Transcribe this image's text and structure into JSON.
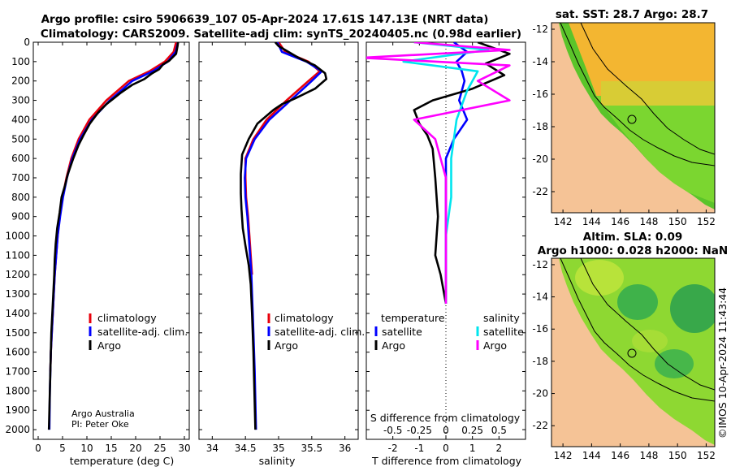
{
  "titles": {
    "line1": "Argo profile: csiro 5906639_107 05-Apr-2024 17.61S 147.13E (NRT data)",
    "line2": "Climatology: CARS2009. Satellite-adj clim: synTS_20240405.nc (0.98d earlier)"
  },
  "credit": {
    "line1": "Argo Australia",
    "line2": "PI: Peter Oke"
  },
  "colors": {
    "argo": "#000000",
    "clim": "#e8000b",
    "sat": "#0000ff",
    "sat_s": "#00e5ee",
    "argo_s": "#ff00ff"
  },
  "chart_data": [
    {
      "type": "line",
      "title": "",
      "xlabel": "temperature (deg C)",
      "ylabel": "",
      "xlim": [
        -1,
        31
      ],
      "ylim": [
        2050,
        0
      ],
      "xticks": [
        "0",
        "5",
        "10",
        "15",
        "20",
        "25",
        "30"
      ],
      "xtick_values": [
        0,
        5,
        10,
        15,
        20,
        25,
        30
      ],
      "yticks": [
        "0",
        "100",
        "200",
        "300",
        "400",
        "500",
        "600",
        "700",
        "800",
        "900",
        "1000",
        "1100",
        "1200",
        "1300",
        "1400",
        "1500",
        "1600",
        "1700",
        "1800",
        "1900",
        "2000"
      ],
      "ytick_values": [
        0,
        100,
        200,
        300,
        400,
        500,
        600,
        700,
        800,
        900,
        1000,
        1100,
        1200,
        1300,
        1400,
        1500,
        1600,
        1700,
        1800,
        1900,
        2000
      ],
      "legend": [
        "climatology",
        "satellite-adj. clim.",
        "Argo"
      ],
      "series": [
        {
          "name": "climatology",
          "color_key": "clim",
          "x": [
            28.3,
            27.8,
            26.0,
            22.8,
            18.6,
            14.0,
            10.5,
            8.3,
            6.8,
            5.8,
            5.0,
            4.4,
            4.0,
            3.7,
            3.4,
            3.2,
            3.0,
            2.8,
            2.6,
            2.5
          ],
          "y": [
            0,
            50,
            100,
            150,
            200,
            300,
            400,
            500,
            600,
            700,
            800,
            900,
            1000,
            1100,
            1200,
            1300,
            1400,
            1500,
            1600,
            1700
          ]
        },
        {
          "name": "satellite-adj. clim.",
          "color_key": "sat",
          "x": [
            28.7,
            28.2,
            26.6,
            23.5,
            19.3,
            14.7,
            11.0,
            8.6,
            7.0,
            5.9,
            5.1,
            4.5,
            4.0,
            3.7,
            3.4,
            3.2,
            3.0,
            2.8,
            2.6,
            2.5,
            2.4,
            2.3
          ],
          "y": [
            0,
            50,
            100,
            150,
            200,
            300,
            400,
            500,
            600,
            700,
            800,
            900,
            1000,
            1100,
            1200,
            1300,
            1400,
            1500,
            1600,
            1700,
            1800,
            2000
          ]
        },
        {
          "name": "Argo",
          "color_key": "argo",
          "x": [
            28.7,
            28.6,
            28.3,
            26.9,
            25.6,
            24.8,
            23.4,
            21.8,
            19.3,
            17.0,
            15.5,
            14.0,
            12.4,
            10.6,
            9.3,
            8.3,
            7.2,
            6.1,
            5.5,
            4.8,
            4.4,
            3.9,
            3.6,
            3.4,
            3.3,
            3.1,
            2.9,
            2.7,
            2.6,
            2.5,
            2.4,
            2.3,
            2.2
          ],
          "y": [
            0,
            20,
            60,
            95,
            115,
            140,
            160,
            190,
            220,
            260,
            290,
            320,
            360,
            420,
            480,
            530,
            600,
            680,
            740,
            800,
            880,
            960,
            1040,
            1120,
            1200,
            1300,
            1400,
            1500,
            1600,
            1700,
            1800,
            1900,
            2000
          ]
        }
      ]
    },
    {
      "type": "line",
      "title": "",
      "xlabel": "salinity",
      "ylabel": "",
      "xlim": [
        33.8,
        36.2
      ],
      "ylim": [
        2050,
        0
      ],
      "xticks": [
        "34",
        "34.5",
        "35",
        "35.5",
        "36"
      ],
      "xtick_values": [
        34,
        34.5,
        35,
        35.5,
        36
      ],
      "legend": [
        "climatology",
        "satellite-adj. clim.",
        "Argo"
      ],
      "series": [
        {
          "name": "climatology",
          "color_key": "clim",
          "x": [
            35.0,
            35.1,
            35.45,
            35.62,
            35.45,
            35.12,
            34.82,
            34.62,
            34.5,
            34.5,
            34.51,
            34.54,
            34.56,
            34.58,
            34.6
          ],
          "y": [
            0,
            50,
            100,
            150,
            200,
            300,
            400,
            500,
            600,
            700,
            800,
            900,
            1000,
            1100,
            1200
          ]
        },
        {
          "name": "satellite-adj. clim.",
          "color_key": "sat",
          "x": [
            34.98,
            35.05,
            35.42,
            35.65,
            35.5,
            35.18,
            34.86,
            34.64,
            34.51,
            34.49,
            34.5,
            34.53,
            34.55,
            34.57,
            34.59,
            34.6,
            34.61,
            34.62,
            34.63,
            34.64,
            34.66
          ],
          "y": [
            0,
            50,
            100,
            150,
            200,
            300,
            400,
            500,
            600,
            700,
            800,
            900,
            1000,
            1100,
            1200,
            1300,
            1400,
            1500,
            1600,
            1700,
            2000
          ]
        },
        {
          "name": "Argo",
          "color_key": "argo",
          "x": [
            34.95,
            35.0,
            35.3,
            35.55,
            35.7,
            35.72,
            35.55,
            35.25,
            35.05,
            34.92,
            34.68,
            34.55,
            34.45,
            34.43,
            34.43,
            34.44,
            34.46,
            34.5,
            34.55,
            34.58,
            34.6,
            34.62,
            34.65
          ],
          "y": [
            0,
            20,
            80,
            120,
            160,
            190,
            240,
            290,
            320,
            350,
            420,
            500,
            580,
            680,
            780,
            860,
            960,
            1050,
            1150,
            1250,
            1400,
            1600,
            2000
          ]
        }
      ]
    },
    {
      "type": "line",
      "title": "",
      "xlabel": "T difference from climatology",
      "xlabel_top": "S difference from climatology",
      "ylabel": "",
      "xlim": [
        -3,
        3
      ],
      "ylim": [
        2050,
        0
      ],
      "xticks": [
        "-2",
        "-1",
        "0",
        "1",
        "2"
      ],
      "xtick_values": [
        -2,
        -1,
        0,
        1,
        2
      ],
      "s_ticks": [
        "-0.5",
        "-0.25",
        "0",
        "0.25",
        "0.5"
      ],
      "s_tick_values": [
        -0.5,
        -0.25,
        0,
        0.25,
        0.5
      ],
      "legend_titles": [
        "temperature",
        "salinity"
      ],
      "legend": [
        "satellite",
        "Argo",
        "satellite",
        "Argo"
      ],
      "series": [
        {
          "name": "satellite (T)",
          "color_key": "sat",
          "x": [
            0.3,
            0.8,
            0.4,
            0.6,
            0.7,
            0.5,
            0.8,
            0.3,
            0.0,
            0.0,
            0.0,
            0.0
          ],
          "y": [
            0,
            50,
            100,
            150,
            200,
            300,
            400,
            500,
            600,
            800,
            1000,
            1350
          ]
        },
        {
          "name": "Argo (T)",
          "color_key": "argo",
          "x": [
            1.2,
            2.4,
            1.5,
            2.2,
            1.0,
            -0.5,
            -1.2,
            -1.0,
            -0.7,
            -0.5,
            -0.4,
            -0.3,
            -0.4,
            -0.2,
            0.0
          ],
          "y": [
            0,
            60,
            110,
            170,
            240,
            300,
            350,
            420,
            480,
            550,
            700,
            900,
            1100,
            1200,
            1350
          ]
        },
        {
          "name": "satellite (S)",
          "color_key": "sat_s",
          "x": [
            -0.3,
            0.4,
            -0.4,
            0.3,
            0.2,
            0.1,
            0.05,
            0.05,
            0.0,
            0.0
          ],
          "y": [
            0,
            40,
            100,
            150,
            250,
            400,
            600,
            800,
            1000,
            1350
          ]
        },
        {
          "name": "Argo (S)",
          "color_key": "argo_s",
          "x": [
            -0.3,
            0.6,
            -0.8,
            0.6,
            0.3,
            0.6,
            -0.3,
            -0.1,
            0.0,
            0.0,
            0.0
          ],
          "y": [
            0,
            40,
            80,
            120,
            200,
            300,
            400,
            500,
            700,
            1000,
            1350
          ]
        }
      ]
    },
    {
      "type": "heatmap",
      "title": "sat. SST: 28.7 Argo: 28.7",
      "xticks": [
        "142",
        "144",
        "146",
        "148",
        "150",
        "152"
      ],
      "yticks": [
        "-12",
        "-14",
        "-16",
        "-18",
        "-20",
        "-22"
      ]
    },
    {
      "type": "heatmap",
      "title_line1": "Altim. SLA: 0.09",
      "title_line2": "Argo h1000: 0.028 h2000: NaN",
      "xticks": [
        "142",
        "144",
        "146",
        "148",
        "150",
        "152"
      ],
      "yticks": [
        "-12",
        "-14",
        "-16",
        "-18",
        "-20",
        "-22"
      ],
      "side_text": "©IMOS 10-Apr-2024 11:43:44"
    }
  ]
}
